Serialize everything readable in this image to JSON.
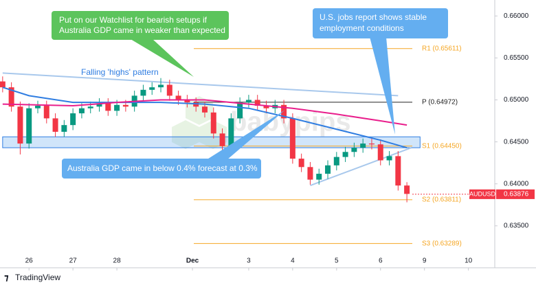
{
  "chart_data": {
    "type": "candlestick",
    "x": [
      -0.6,
      -0.4,
      -0.2,
      0,
      0.2,
      0.4,
      0.6,
      0.8,
      1,
      1.2,
      1.4,
      1.6,
      1.8,
      2,
      2.2,
      2.4,
      2.6,
      2.8,
      3,
      3.2,
      3.4,
      3.6,
      3.8,
      4,
      4.2,
      4.4,
      4.6,
      4.8,
      5,
      5.2,
      5.4,
      5.6,
      5.8,
      6,
      6.2,
      6.4,
      6.6,
      6.8,
      7,
      7.2,
      7.4,
      7.6,
      7.8,
      8,
      8.2,
      8.4,
      8.6
    ],
    "open": [
      0.6522,
      0.6515,
      0.6492,
      0.6448,
      0.649,
      0.6493,
      0.6478,
      0.6462,
      0.647,
      0.6484,
      0.649,
      0.6492,
      0.6496,
      0.6487,
      0.6494,
      0.6492,
      0.6505,
      0.6512,
      0.6515,
      0.6518,
      0.6505,
      0.65,
      0.6497,
      0.6492,
      0.6485,
      0.646,
      0.6445,
      0.6478,
      0.6497,
      0.65,
      0.6493,
      0.649,
      0.6494,
      0.6478,
      0.643,
      0.642,
      0.6405,
      0.6412,
      0.6422,
      0.6432,
      0.6438,
      0.6443,
      0.6448,
      0.6447,
      0.6428,
      0.6433,
      0.6398
    ],
    "high": [
      0.6528,
      0.6521,
      0.6498,
      0.6496,
      0.6499,
      0.6499,
      0.6484,
      0.6476,
      0.649,
      0.6496,
      0.6498,
      0.6502,
      0.6502,
      0.65,
      0.65,
      0.6511,
      0.6518,
      0.6521,
      0.6526,
      0.6524,
      0.6511,
      0.6506,
      0.6503,
      0.6498,
      0.6491,
      0.6466,
      0.6484,
      0.6503,
      0.6506,
      0.6506,
      0.6499,
      0.65,
      0.65,
      0.6484,
      0.6436,
      0.6426,
      0.6418,
      0.6428,
      0.6438,
      0.6444,
      0.6449,
      0.6454,
      0.6454,
      0.6453,
      0.6439,
      0.6439,
      0.6402
    ],
    "low": [
      0.6509,
      0.6486,
      0.6435,
      0.6442,
      0.6484,
      0.6472,
      0.6456,
      0.6456,
      0.6464,
      0.6478,
      0.6484,
      0.6486,
      0.6481,
      0.6481,
      0.6486,
      0.6486,
      0.6499,
      0.6506,
      0.6509,
      0.6499,
      0.6494,
      0.6491,
      0.6486,
      0.6479,
      0.6454,
      0.6439,
      0.6439,
      0.6472,
      0.6491,
      0.6487,
      0.6484,
      0.6484,
      0.6472,
      0.6424,
      0.6414,
      0.6399,
      0.6399,
      0.6406,
      0.6416,
      0.6426,
      0.6432,
      0.6437,
      0.6441,
      0.6422,
      0.6422,
      0.6392,
      0.6378
    ],
    "close": [
      0.6515,
      0.6492,
      0.6448,
      0.649,
      0.6493,
      0.6478,
      0.6462,
      0.647,
      0.6484,
      0.649,
      0.6492,
      0.6496,
      0.6487,
      0.6494,
      0.6492,
      0.6505,
      0.6512,
      0.6515,
      0.6518,
      0.6505,
      0.65,
      0.6497,
      0.6492,
      0.6485,
      0.646,
      0.6445,
      0.6478,
      0.6497,
      0.65,
      0.6493,
      0.649,
      0.6494,
      0.6478,
      0.643,
      0.642,
      0.6405,
      0.6412,
      0.6422,
      0.6432,
      0.6438,
      0.6443,
      0.6448,
      0.6447,
      0.6428,
      0.6433,
      0.6398,
      0.6388
    ],
    "up_color": "#089981",
    "down_color": "#f23645",
    "moving_averages": [
      {
        "color": "#2f7de1",
        "x": [
          -0.6,
          0,
          1,
          2,
          3,
          4,
          5,
          6,
          7,
          8,
          8.6
        ],
        "values": [
          0.6515,
          0.6505,
          0.6497,
          0.6497,
          0.6497,
          0.6495,
          0.649,
          0.6478,
          0.6465,
          0.6452,
          0.6443
        ]
      },
      {
        "color": "#e91e8c",
        "x": [
          -0.6,
          1,
          2,
          3,
          4,
          5,
          6,
          7,
          8,
          8.6
        ],
        "values": [
          0.6495,
          0.6493,
          0.6497,
          0.65,
          0.65,
          0.6495,
          0.649,
          0.6483,
          0.6475,
          0.647
        ]
      }
    ],
    "trendlines": [
      {
        "color": "#a8c8ec",
        "x": [
          -0.6,
          8.4
        ],
        "values": [
          0.6532,
          0.6505
        ]
      },
      {
        "color": "#a8c8ec",
        "x": [
          6.4,
          8.7
        ],
        "values": [
          0.6398,
          0.6443
        ]
      }
    ],
    "zone": {
      "x": [
        -0.6,
        8.9
      ],
      "values": [
        0.6443,
        0.6456
      ]
    },
    "levels": [
      {
        "label": "R1 (0.65611)",
        "value": 0.65611,
        "color": "#f5a623"
      },
      {
        "label": "P (0.64972)",
        "value": 0.64972,
        "color": "#222222"
      },
      {
        "label": "S1 (0.64450)",
        "value": 0.6445,
        "color": "#f5a623"
      },
      {
        "label": "S2 (0.63811)",
        "value": 0.63811,
        "color": "#f5a623"
      },
      {
        "label": "S3 (0.63289)",
        "value": 0.63289,
        "color": "#f5a623"
      }
    ],
    "last_price": {
      "symbol": "AUDUSD",
      "value": 0.63876,
      "label": "0.63876"
    },
    "xlim": [
      -0.66,
      10.6
    ],
    "ylim": [
      0.63,
      0.6619
    ],
    "xticks": [
      {
        "value": 0,
        "label": "26"
      },
      {
        "value": 1,
        "label": "27"
      },
      {
        "value": 2,
        "label": "28"
      },
      {
        "value": 3.72,
        "label": "Dec"
      },
      {
        "value": 5,
        "label": "3"
      },
      {
        "value": 6,
        "label": "4"
      },
      {
        "value": 7,
        "label": "5"
      },
      {
        "value": 8,
        "label": "6"
      },
      {
        "value": 9,
        "label": "9"
      },
      {
        "value": 10,
        "label": "10"
      }
    ],
    "yticks": [
      {
        "value": 0.635,
        "label": "0.63500"
      },
      {
        "value": 0.64,
        "label": "0.64000"
      },
      {
        "value": 0.645,
        "label": "0.64500"
      },
      {
        "value": 0.65,
        "label": "0.65000"
      },
      {
        "value": 0.655,
        "label": "0.65500"
      },
      {
        "value": 0.66,
        "label": "0.66000"
      }
    ],
    "pattern_label": "Falling 'highs' pattern",
    "watermark": "babypips",
    "callouts": [
      {
        "lines": [
          "Put on our Watchlist for bearish setups if",
          "Australia GDP came in weaker than expected"
        ]
      },
      {
        "lines": [
          "U.S. jobs report shows stable",
          "employment  conditions"
        ]
      },
      {
        "lines": [
          "Australia GDP came in below 0.4% forecast at 0.3%"
        ]
      }
    ],
    "footer": "TradingView"
  }
}
